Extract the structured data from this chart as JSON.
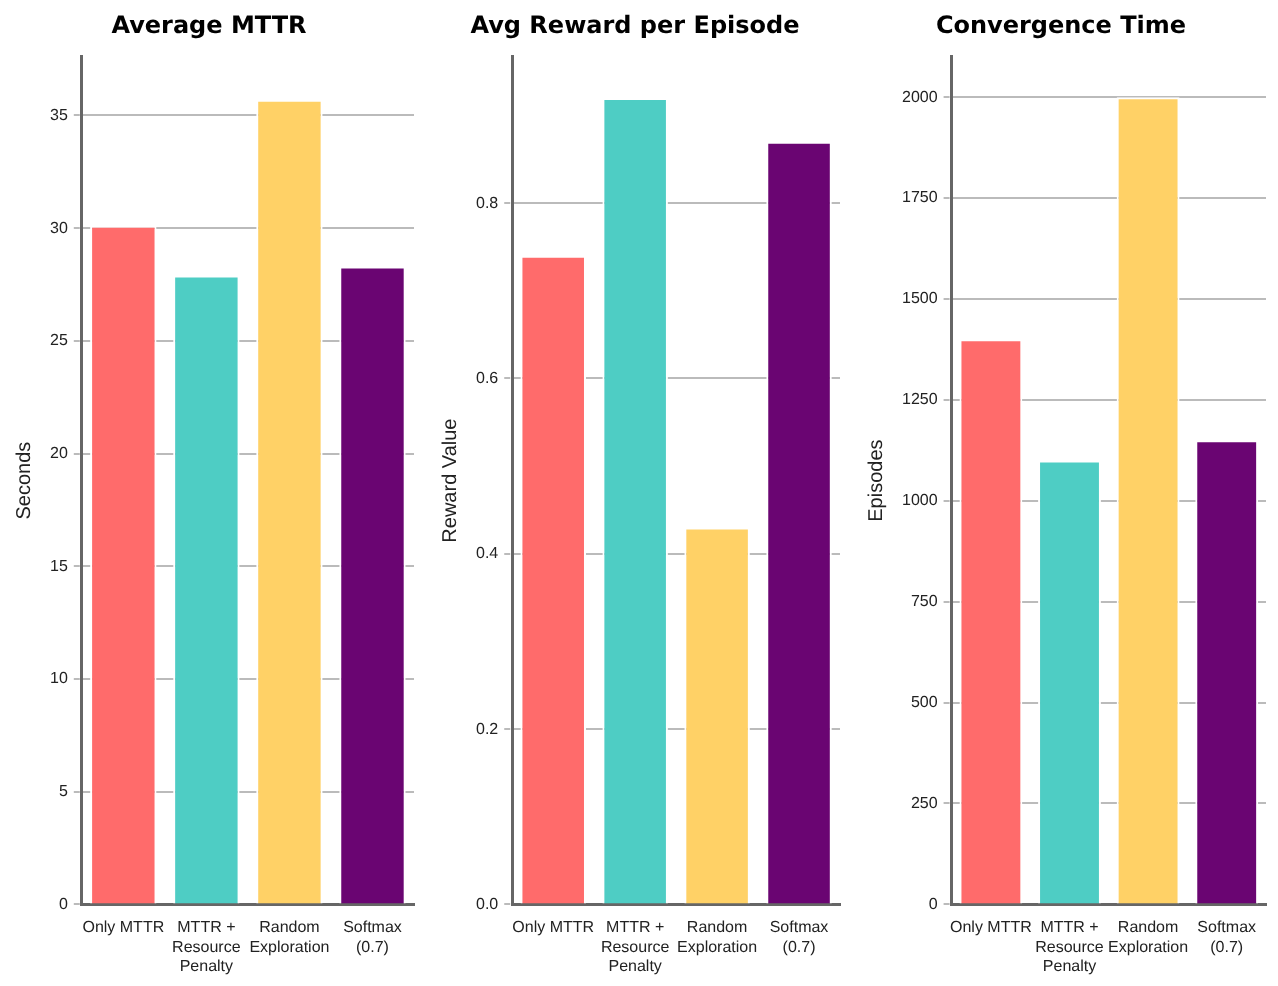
{
  "chart_data": [
    {
      "type": "bar",
      "title": "Average MTTR",
      "ylabel": "Seconds",
      "categories": [
        "Only MTTR",
        "MTTR + Resource Penalty",
        "Random Exploration",
        "Softmax (0.7)"
      ],
      "values": [
        30.1,
        27.9,
        35.7,
        28.3
      ],
      "colors": [
        "#ff6b6b",
        "#4ecdc4",
        "#ffd166",
        "#6a0572"
      ],
      "ylim": [
        0,
        37.6
      ],
      "yticks": [
        0,
        5,
        10,
        15,
        20,
        25,
        30,
        35
      ],
      "grid": "y",
      "legend": false
    },
    {
      "type": "bar",
      "title": "Avg Reward per Episode",
      "ylabel": "Reward Value",
      "categories": [
        "Only MTTR",
        "MTTR + Resource Penalty",
        "Random Exploration",
        "Softmax (0.7)"
      ],
      "values": [
        0.74,
        0.92,
        0.43,
        0.87
      ],
      "colors": [
        "#ff6b6b",
        "#4ecdc4",
        "#ffd166",
        "#6a0572"
      ],
      "ylim": [
        0,
        0.967
      ],
      "yticks": [
        {
          "value": 0,
          "label": "0.0"
        },
        0.2,
        0.4,
        0.6,
        0.8
      ],
      "grid": "y",
      "legend": false
    },
    {
      "type": "bar",
      "title": "Convergence Time",
      "ylabel": "Episodes",
      "categories": [
        "Only MTTR",
        "MTTR + Resource Penalty",
        "Random Exploration",
        "Softmax (0.7)"
      ],
      "values": [
        1400,
        1100,
        2000,
        1150
      ],
      "colors": [
        "#ff6b6b",
        "#4ecdc4",
        "#ffd166",
        "#6a0572"
      ],
      "ylim": [
        0,
        2100
      ],
      "yticks": [
        0,
        250,
        500,
        750,
        1000,
        1250,
        1500,
        1750,
        2000
      ],
      "grid": "y",
      "legend": false
    }
  ]
}
